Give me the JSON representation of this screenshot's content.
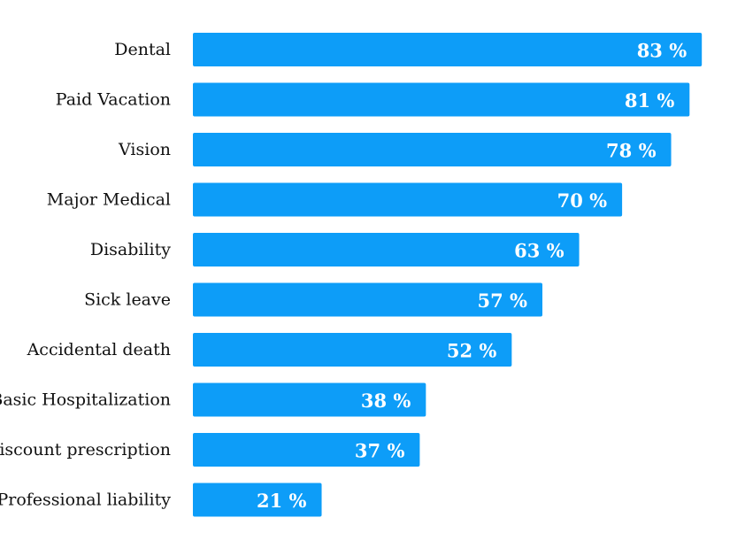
{
  "chart_data": {
    "type": "bar",
    "orientation": "horizontal",
    "categories": [
      "Dental",
      "Paid Vacation",
      "Vision",
      "Major Medical",
      "Disability",
      "Sick leave",
      "Accidental death",
      "Basic Hospitalization",
      "Discount prescription",
      "Professional liability"
    ],
    "values": [
      83,
      81,
      78,
      70,
      63,
      57,
      52,
      38,
      37,
      21
    ],
    "value_labels": [
      "83 %",
      "81 %",
      "78 %",
      "70 %",
      "63 %",
      "57 %",
      "52 %",
      "38 %",
      "37 %",
      "21 %"
    ],
    "title": "",
    "xlabel": "",
    "ylabel": "",
    "xlim": [
      0,
      100
    ],
    "grid": false,
    "legend": "none",
    "colors": {
      "bar": "#0d9df8",
      "value_text": "#ffffff",
      "category_text": "#111111",
      "background": "#ffffff"
    }
  }
}
